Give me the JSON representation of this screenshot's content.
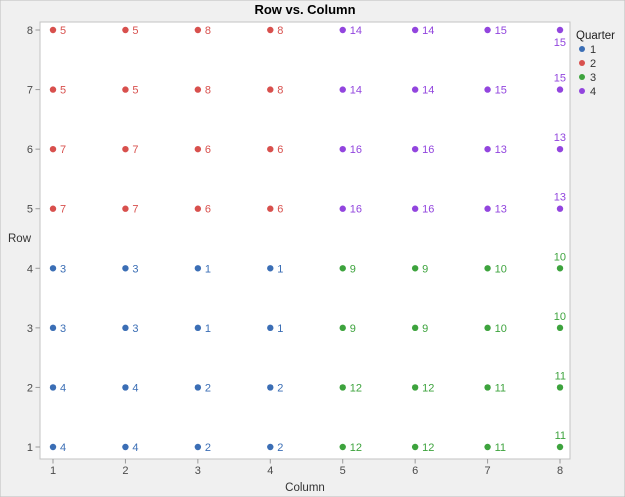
{
  "title": "Row vs. Column",
  "chart_data": {
    "type": "scatter",
    "title": "Row vs. Column",
    "xlabel": "Column",
    "ylabel": "Row",
    "xticks": [
      1,
      2,
      3,
      4,
      5,
      6,
      7,
      8
    ],
    "yticks": [
      1,
      2,
      3,
      4,
      5,
      6,
      7,
      8
    ],
    "xlim": [
      0.8,
      8.15
    ],
    "ylim": [
      0.7,
      8.15
    ],
    "grid": false,
    "background": "#f0f0f0",
    "plot_background": "#ffffff",
    "plot_border_color": "#c3c3c3",
    "legend": {
      "title": "Quarter",
      "position": "right",
      "entries": [
        {
          "label": "1",
          "color": "#3b6eb5"
        },
        {
          "label": "2",
          "color": "#d8504d"
        },
        {
          "label": "3",
          "color": "#3da33d"
        },
        {
          "label": "4",
          "color": "#9245de"
        }
      ]
    },
    "points": [
      {
        "col": 1,
        "row": 8,
        "q": "2",
        "label": "5"
      },
      {
        "col": 2,
        "row": 8,
        "q": "2",
        "label": "5"
      },
      {
        "col": 3,
        "row": 8,
        "q": "2",
        "label": "8"
      },
      {
        "col": 4,
        "row": 8,
        "q": "2",
        "label": "8"
      },
      {
        "col": 5,
        "row": 8,
        "q": "4",
        "label": "14"
      },
      {
        "col": 6,
        "row": 8,
        "q": "4",
        "label": "14"
      },
      {
        "col": 7,
        "row": 8,
        "q": "4",
        "label": "15"
      },
      {
        "col": 8,
        "row": 8,
        "q": "4",
        "label": "15",
        "label_pos": "below"
      },
      {
        "col": 1,
        "row": 7,
        "q": "2",
        "label": "5"
      },
      {
        "col": 2,
        "row": 7,
        "q": "2",
        "label": "5"
      },
      {
        "col": 3,
        "row": 7,
        "q": "2",
        "label": "8"
      },
      {
        "col": 4,
        "row": 7,
        "q": "2",
        "label": "8"
      },
      {
        "col": 5,
        "row": 7,
        "q": "4",
        "label": "14"
      },
      {
        "col": 6,
        "row": 7,
        "q": "4",
        "label": "14"
      },
      {
        "col": 7,
        "row": 7,
        "q": "4",
        "label": "15"
      },
      {
        "col": 8,
        "row": 7,
        "q": "4",
        "label": "15",
        "label_pos": "above"
      },
      {
        "col": 1,
        "row": 6,
        "q": "2",
        "label": "7"
      },
      {
        "col": 2,
        "row": 6,
        "q": "2",
        "label": "7"
      },
      {
        "col": 3,
        "row": 6,
        "q": "2",
        "label": "6"
      },
      {
        "col": 4,
        "row": 6,
        "q": "2",
        "label": "6"
      },
      {
        "col": 5,
        "row": 6,
        "q": "4",
        "label": "16"
      },
      {
        "col": 6,
        "row": 6,
        "q": "4",
        "label": "16"
      },
      {
        "col": 7,
        "row": 6,
        "q": "4",
        "label": "13"
      },
      {
        "col": 8,
        "row": 6,
        "q": "4",
        "label": "13",
        "label_pos": "above"
      },
      {
        "col": 1,
        "row": 5,
        "q": "2",
        "label": "7"
      },
      {
        "col": 2,
        "row": 5,
        "q": "2",
        "label": "7"
      },
      {
        "col": 3,
        "row": 5,
        "q": "2",
        "label": "6"
      },
      {
        "col": 4,
        "row": 5,
        "q": "2",
        "label": "6"
      },
      {
        "col": 5,
        "row": 5,
        "q": "4",
        "label": "16"
      },
      {
        "col": 6,
        "row": 5,
        "q": "4",
        "label": "16"
      },
      {
        "col": 7,
        "row": 5,
        "q": "4",
        "label": "13"
      },
      {
        "col": 8,
        "row": 5,
        "q": "4",
        "label": "13",
        "label_pos": "above"
      },
      {
        "col": 1,
        "row": 4,
        "q": "1",
        "label": "3"
      },
      {
        "col": 2,
        "row": 4,
        "q": "1",
        "label": "3"
      },
      {
        "col": 3,
        "row": 4,
        "q": "1",
        "label": "1"
      },
      {
        "col": 4,
        "row": 4,
        "q": "1",
        "label": "1"
      },
      {
        "col": 5,
        "row": 4,
        "q": "3",
        "label": "9"
      },
      {
        "col": 6,
        "row": 4,
        "q": "3",
        "label": "9"
      },
      {
        "col": 7,
        "row": 4,
        "q": "3",
        "label": "10"
      },
      {
        "col": 8,
        "row": 4,
        "q": "3",
        "label": "10",
        "label_pos": "above"
      },
      {
        "col": 1,
        "row": 3,
        "q": "1",
        "label": "3"
      },
      {
        "col": 2,
        "row": 3,
        "q": "1",
        "label": "3"
      },
      {
        "col": 3,
        "row": 3,
        "q": "1",
        "label": "1"
      },
      {
        "col": 4,
        "row": 3,
        "q": "1",
        "label": "1"
      },
      {
        "col": 5,
        "row": 3,
        "q": "3",
        "label": "9"
      },
      {
        "col": 6,
        "row": 3,
        "q": "3",
        "label": "9"
      },
      {
        "col": 7,
        "row": 3,
        "q": "3",
        "label": "10"
      },
      {
        "col": 8,
        "row": 3,
        "q": "3",
        "label": "10",
        "label_pos": "above"
      },
      {
        "col": 1,
        "row": 2,
        "q": "1",
        "label": "4"
      },
      {
        "col": 2,
        "row": 2,
        "q": "1",
        "label": "4"
      },
      {
        "col": 3,
        "row": 2,
        "q": "1",
        "label": "2"
      },
      {
        "col": 4,
        "row": 2,
        "q": "1",
        "label": "2"
      },
      {
        "col": 5,
        "row": 2,
        "q": "3",
        "label": "12"
      },
      {
        "col": 6,
        "row": 2,
        "q": "3",
        "label": "12"
      },
      {
        "col": 7,
        "row": 2,
        "q": "3",
        "label": "11"
      },
      {
        "col": 8,
        "row": 2,
        "q": "3",
        "label": "11",
        "label_pos": "above"
      },
      {
        "col": 1,
        "row": 1,
        "q": "1",
        "label": "4"
      },
      {
        "col": 2,
        "row": 1,
        "q": "1",
        "label": "4"
      },
      {
        "col": 3,
        "row": 1,
        "q": "1",
        "label": "2"
      },
      {
        "col": 4,
        "row": 1,
        "q": "1",
        "label": "2"
      },
      {
        "col": 5,
        "row": 1,
        "q": "3",
        "label": "12"
      },
      {
        "col": 6,
        "row": 1,
        "q": "3",
        "label": "12"
      },
      {
        "col": 7,
        "row": 1,
        "q": "3",
        "label": "11"
      },
      {
        "col": 8,
        "row": 1,
        "q": "3",
        "label": "11",
        "label_pos": "above"
      }
    ]
  }
}
